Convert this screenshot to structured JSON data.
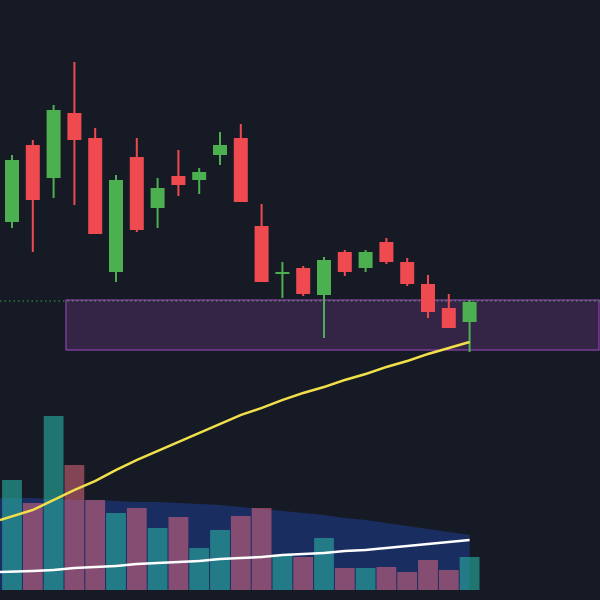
{
  "chart_data": {
    "type": "candlestick",
    "open": [
      378,
      455,
      422,
      487,
      462,
      328,
      443,
      392,
      424,
      420,
      445,
      462,
      374,
      326,
      332,
      305,
      348,
      332,
      358,
      338,
      316,
      292,
      278
    ],
    "high": [
      445,
      460,
      495,
      538,
      472,
      425,
      462,
      422,
      450,
      432,
      468,
      476,
      396,
      338,
      334,
      343,
      350,
      350,
      362,
      342,
      325,
      306,
      300
    ],
    "low": [
      372,
      348,
      402,
      395,
      366,
      318,
      368,
      372,
      404,
      406,
      435,
      398,
      318,
      302,
      304,
      262,
      324,
      328,
      336,
      314,
      282,
      272,
      248
    ],
    "close": [
      440,
      400,
      490,
      460,
      366,
      420,
      370,
      412,
      415,
      428,
      455,
      398,
      318,
      328,
      306,
      340,
      328,
      348,
      338,
      316,
      288,
      272,
      298
    ],
    "moving_average": {
      "color": "#f2e04b",
      "values": [
        80,
        90,
        100,
        110,
        119,
        130,
        140,
        149,
        158,
        167,
        176,
        185,
        192,
        200,
        207,
        213,
        220,
        226,
        233,
        239,
        246,
        252,
        258
      ]
    },
    "volume": [
      110,
      87,
      174,
      125,
      90,
      77,
      82,
      62,
      73,
      42,
      60,
      74,
      82,
      35,
      33,
      52,
      22,
      22,
      23,
      18,
      30,
      20,
      33
    ],
    "volume_average": {
      "color": "rgba(41,98,255,0.28)",
      "values": [
        92,
        92,
        91,
        90,
        90,
        89,
        88,
        88,
        87,
        86,
        85,
        83,
        81,
        79,
        77,
        75,
        72,
        70,
        67,
        64,
        61,
        58,
        55
      ]
    },
    "volume_trend": {
      "color": "#ffffff",
      "values": [
        18,
        19,
        20,
        22,
        23,
        24,
        26,
        27,
        28,
        29,
        31,
        32,
        33,
        35,
        36,
        37,
        39,
        40,
        42,
        44,
        46,
        48,
        50
      ]
    },
    "zone": {
      "low": 250,
      "high": 300,
      "color": "#8e44ad"
    },
    "reference_line": {
      "value": 299,
      "color": "#43a047"
    },
    "up_color": "#4caf50",
    "down_color": "#ef4a4f",
    "volume_up_color": "rgba(38,166,154,0.65)",
    "volume_down_color": "rgba(239,110,130,0.5)",
    "ylim": [
      0,
      600
    ],
    "y2lim": [
      0,
      590
    ]
  }
}
